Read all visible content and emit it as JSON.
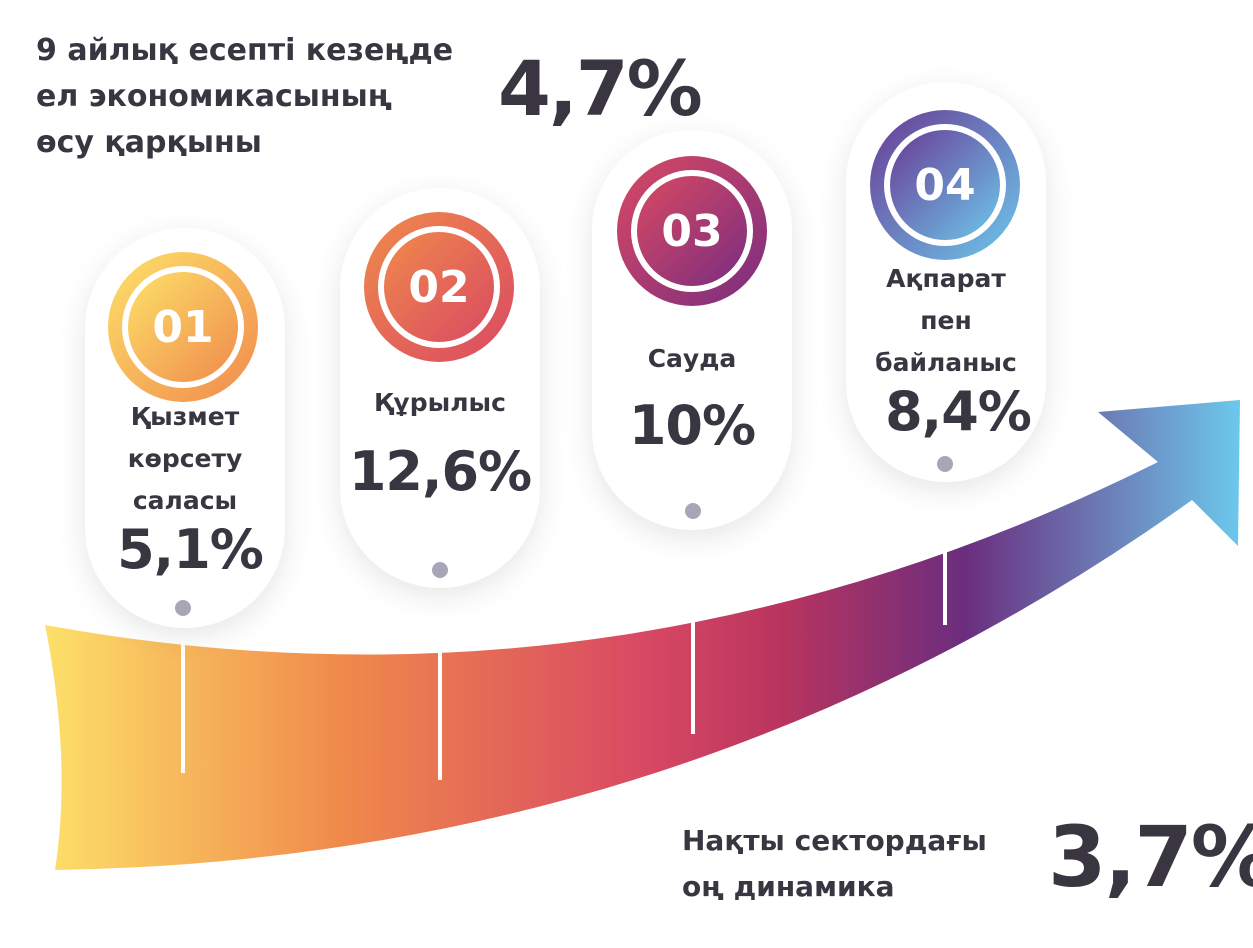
{
  "headline": {
    "lines": [
      "9 айлық есепті кезеңде",
      "ел экономикасының",
      "өсу қарқыны"
    ],
    "value": "4,7%"
  },
  "sectors": [
    {
      "number": "01",
      "label_lines": [
        "Қызмет",
        "көрсету",
        "саласы"
      ],
      "value": "5,1%",
      "gradient": [
        "#fde16a",
        "#f08a4b"
      ]
    },
    {
      "number": "02",
      "label_lines": [
        "Құрылыс"
      ],
      "value": "12,6%",
      "gradient": [
        "#f08a4b",
        "#d94963"
      ]
    },
    {
      "number": "03",
      "label_lines": [
        "Сауда"
      ],
      "value": "10%",
      "gradient": [
        "#d94963",
        "#7a2d80"
      ]
    },
    {
      "number": "04",
      "label_lines": [
        "Ақпарат",
        "пен",
        "байланыс"
      ],
      "value": "8,4%",
      "gradient": [
        "#6a3a94",
        "#6cc8ec"
      ]
    }
  ],
  "footer": {
    "lines": [
      "Нақты сектордағы",
      "оң динамика"
    ],
    "value": "3,7%"
  },
  "arrow_colors": [
    "#fde16a",
    "#f08a4b",
    "#d94963",
    "#b8345f",
    "#6b2d7e",
    "#6cc8ec"
  ]
}
